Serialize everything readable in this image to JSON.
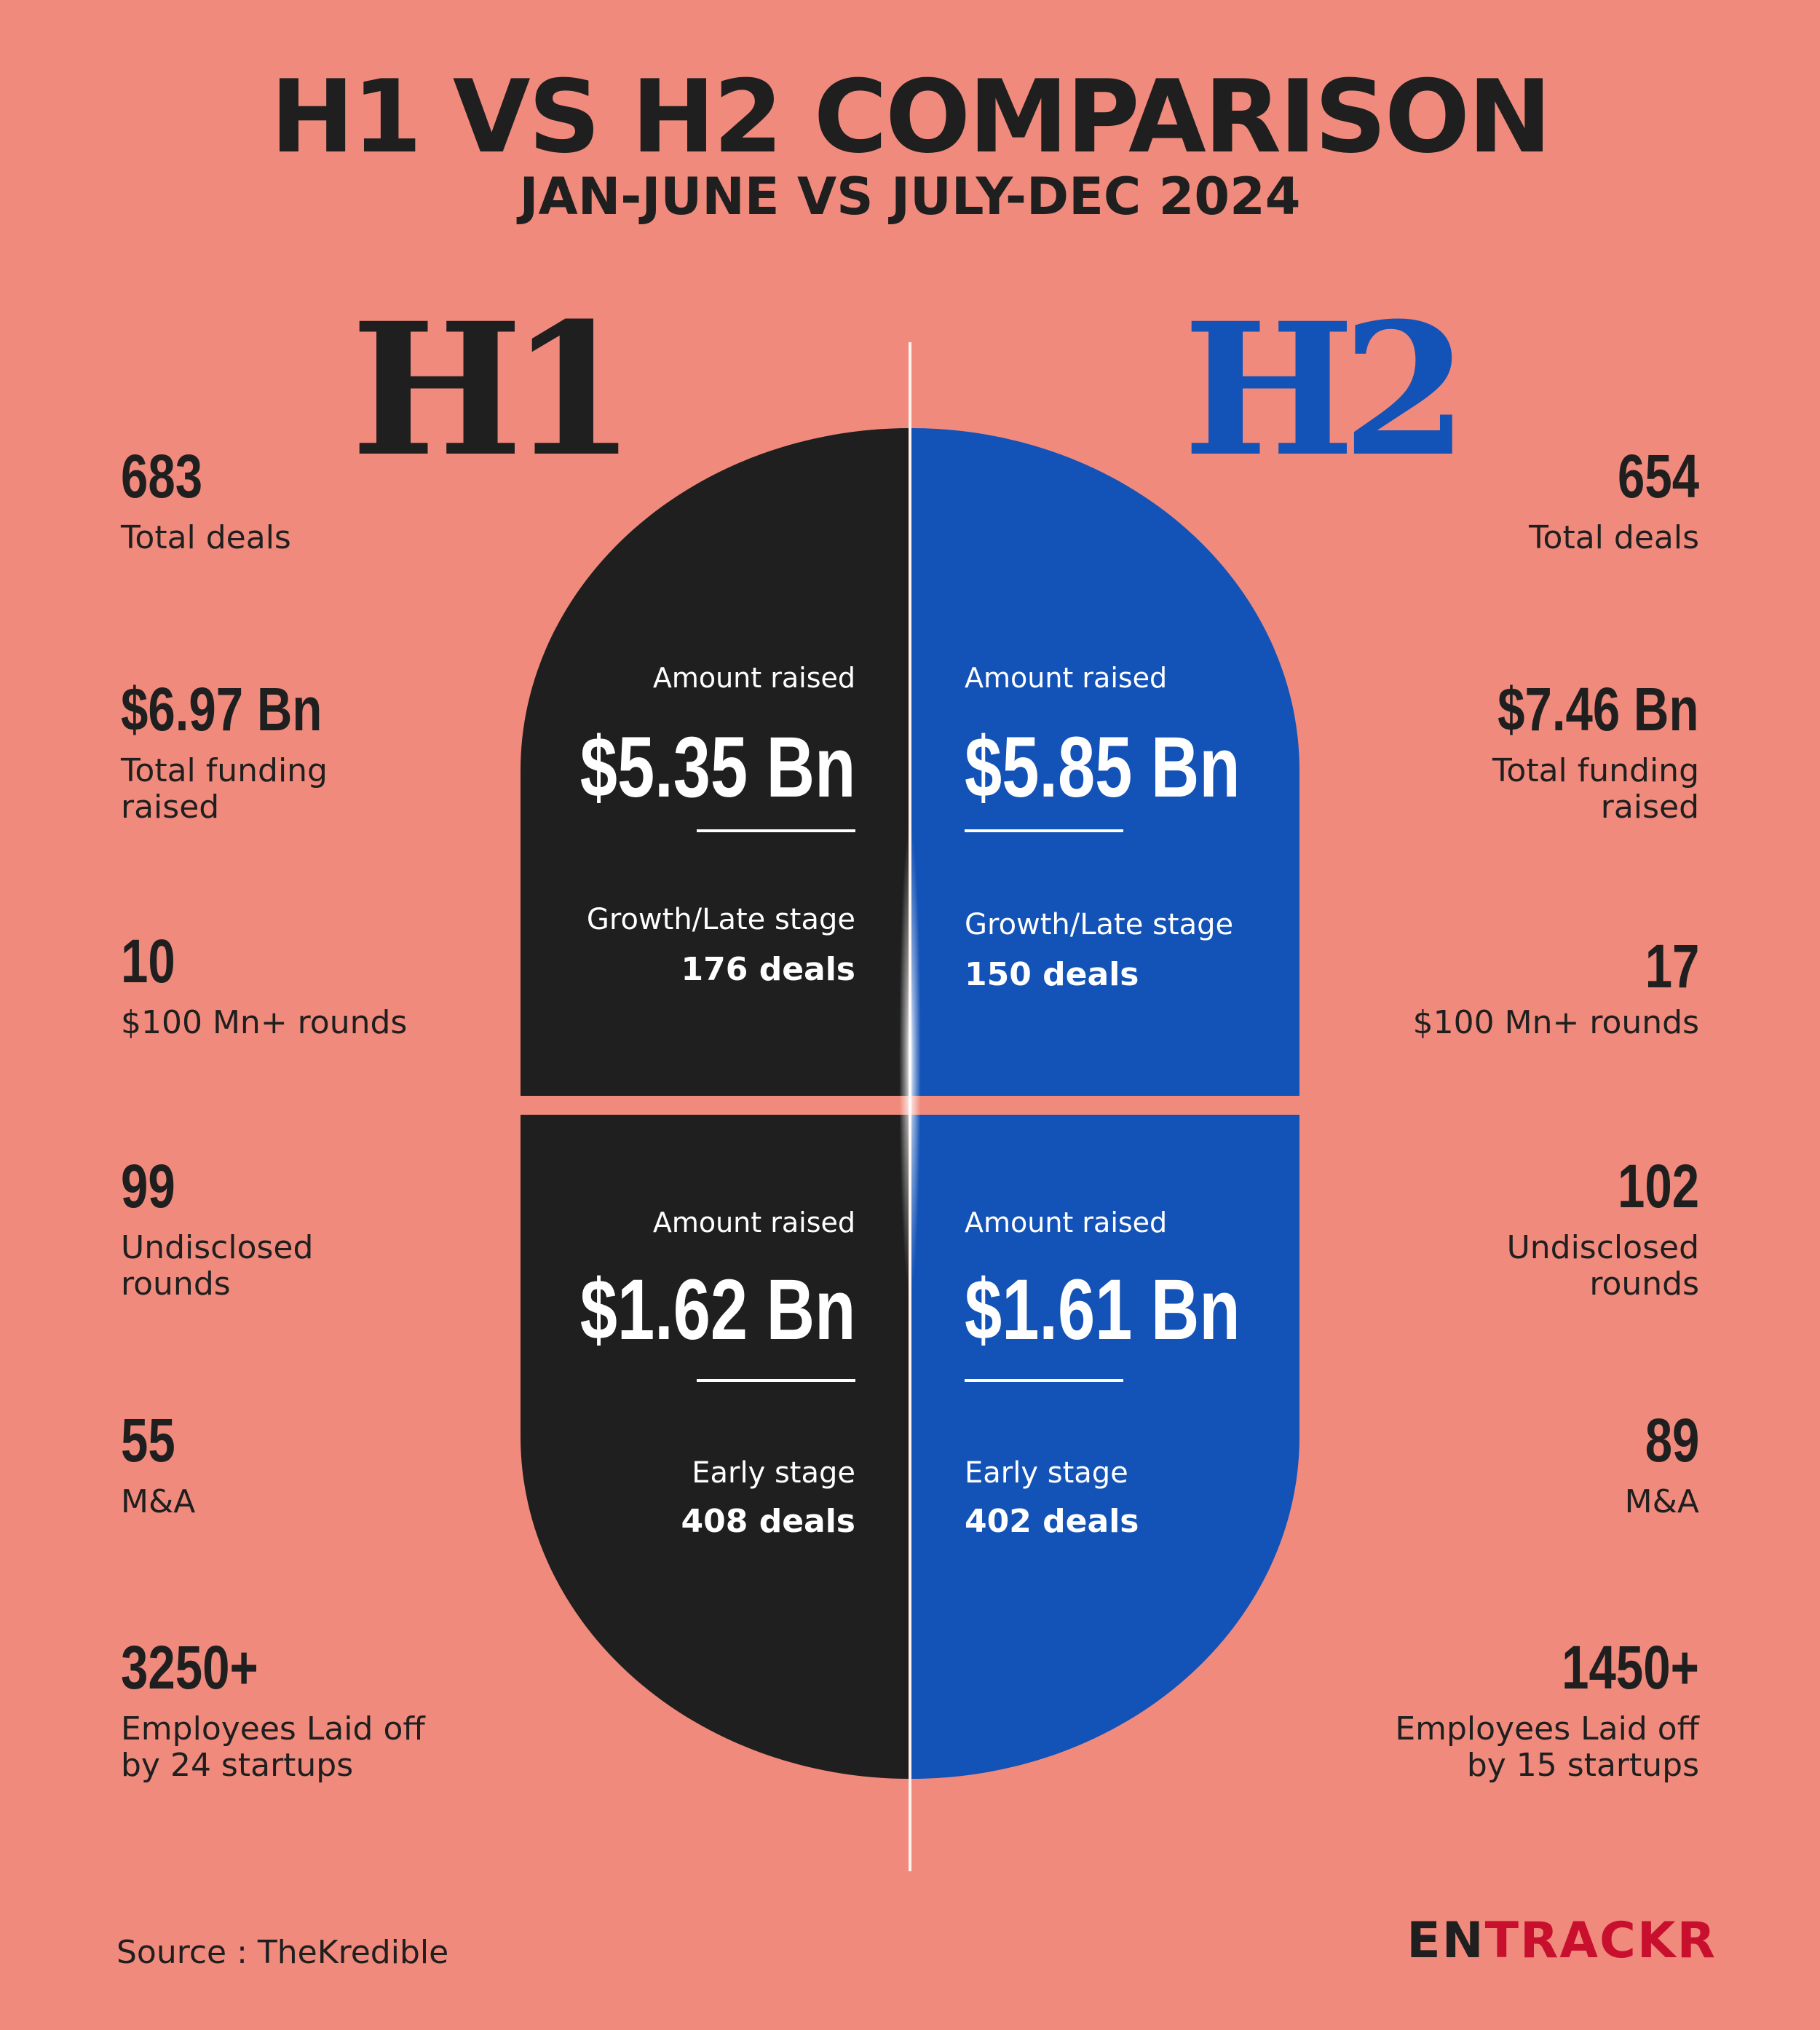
{
  "header": {
    "title": "H1 VS H2 COMPARISON",
    "subtitle": "JAN-JUNE VS JULY-DEC 2024"
  },
  "labels": {
    "h1": "H1",
    "h2": "H2"
  },
  "colors": {
    "background": "#f08a7c",
    "h1": "#1f1f1f",
    "h2": "#1352b6",
    "logo_accent": "#c8102e"
  },
  "h1": {
    "stats": [
      {
        "value": "683",
        "label_lines": [
          "Total deals"
        ]
      },
      {
        "value": "$6.97 Bn",
        "label_lines": [
          "Total funding",
          "raised"
        ]
      },
      {
        "value": "10",
        "label_lines": [
          "$100 Mn+ rounds"
        ]
      },
      {
        "value": "99",
        "label_lines": [
          "Undisclosed",
          "rounds"
        ]
      },
      {
        "value": "55",
        "label_lines": [
          "M&A"
        ]
      },
      {
        "value": "3250+",
        "label_lines": [
          "Employees Laid off",
          "by 24 startups"
        ]
      }
    ],
    "growth": {
      "amount_label": "Amount raised",
      "amount": "$5.35 Bn",
      "stage": "Growth/Late stage",
      "deals": "176 deals"
    },
    "early": {
      "amount_label": "Amount raised",
      "amount": "$1.62 Bn",
      "stage": "Early stage",
      "deals": "408 deals"
    }
  },
  "h2": {
    "stats": [
      {
        "value": "654",
        "label_lines": [
          "Total deals"
        ]
      },
      {
        "value": "$7.46 Bn",
        "label_lines": [
          "Total funding",
          "raised"
        ]
      },
      {
        "value": "17",
        "label_lines": [
          "$100 Mn+ rounds"
        ]
      },
      {
        "value": "102",
        "label_lines": [
          "Undisclosed",
          "rounds"
        ]
      },
      {
        "value": "89",
        "label_lines": [
          "M&A"
        ]
      },
      {
        "value": "1450+",
        "label_lines": [
          "Employees Laid off",
          "by 15 startups"
        ]
      }
    ],
    "growth": {
      "amount_label": "Amount raised",
      "amount": "$5.85 Bn",
      "stage": "Growth/Late stage",
      "deals": "150 deals"
    },
    "early": {
      "amount_label": "Amount raised",
      "amount": "$1.61 Bn",
      "stage": "Early stage",
      "deals": "402 deals"
    }
  },
  "footer": {
    "source": "Source : TheKredible",
    "logo_part1": "EN",
    "logo_part2": "TRACKR"
  }
}
